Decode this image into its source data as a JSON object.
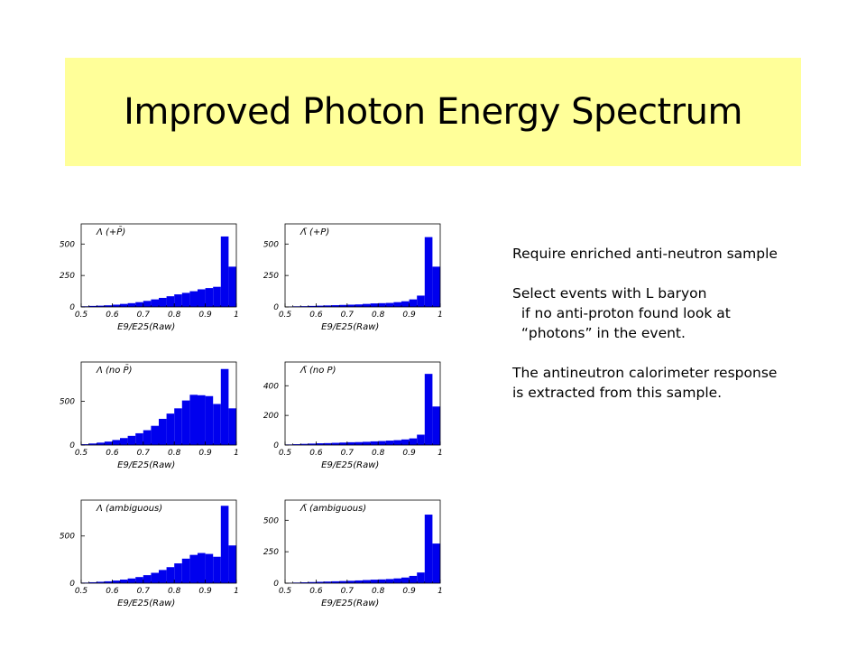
{
  "slide": {
    "title": "Improved Photon Energy Spectrum"
  },
  "notes": {
    "lines": [
      "Require enriched anti-neutron sample",
      "",
      "Select events with L baryon",
      "  if no anti-proton found look at",
      "  “photons” in the event.",
      "",
      "The antineutron calorimeter response",
      "is extracted from this sample."
    ]
  },
  "colors": {
    "title_bg": "#ffff99",
    "bar": "#0000ee"
  },
  "chart_data": [
    {
      "type": "bar",
      "legend": "Λ (+P̄)",
      "xlabel": "E9/E25(Raw)",
      "xlim": [
        0.5,
        1.0
      ],
      "ylim": [
        0,
        660
      ],
      "x_ticks": [
        "0.5",
        "0.6",
        "0.7",
        "0.8",
        "0.9",
        "1"
      ],
      "y_ticks": [
        {
          "value": 0,
          "label": "0"
        },
        {
          "value": 250,
          "label": "250"
        },
        {
          "value": 500,
          "label": "500"
        }
      ],
      "bin_width": 0.025,
      "bin_start": 0.5,
      "values": [
        5,
        8,
        10,
        13,
        18,
        24,
        30,
        38,
        48,
        60,
        72,
        85,
        100,
        112,
        125,
        140,
        150,
        160,
        560,
        320
      ]
    },
    {
      "type": "bar",
      "legend": "Λ̄ (+P)",
      "xlabel": "E9/E25(Raw)",
      "xlim": [
        0.5,
        1.0
      ],
      "ylim": [
        0,
        660
      ],
      "x_ticks": [
        "0.5",
        "0.6",
        "0.7",
        "0.8",
        "0.9",
        "1"
      ],
      "y_ticks": [
        {
          "value": 0,
          "label": "0"
        },
        {
          "value": 250,
          "label": "250"
        },
        {
          "value": 500,
          "label": "500"
        }
      ],
      "bin_width": 0.025,
      "bin_start": 0.5,
      "values": [
        3,
        5,
        6,
        8,
        10,
        12,
        14,
        16,
        18,
        20,
        24,
        28,
        30,
        32,
        38,
        45,
        60,
        90,
        555,
        320
      ]
    },
    {
      "type": "bar",
      "legend": "Λ (no P̄)",
      "xlabel": "E9/E25(Raw)",
      "xlim": [
        0.5,
        1.0
      ],
      "ylim": [
        0,
        950
      ],
      "x_ticks": [
        "0.5",
        "0.6",
        "0.7",
        "0.8",
        "0.9",
        "1"
      ],
      "y_ticks": [
        {
          "value": 0,
          "label": "0"
        },
        {
          "value": 500,
          "label": "500"
        }
      ],
      "bin_width": 0.025,
      "bin_start": 0.5,
      "values": [
        10,
        18,
        28,
        40,
        58,
        80,
        105,
        135,
        170,
        220,
        300,
        360,
        420,
        510,
        575,
        570,
        560,
        470,
        870,
        420
      ]
    },
    {
      "type": "bar",
      "legend": "Λ̄ (no P)",
      "xlabel": "E9/E25(Raw)",
      "xlim": [
        0.5,
        1.0
      ],
      "ylim": [
        0,
        560
      ],
      "x_ticks": [
        "0.5",
        "0.6",
        "0.7",
        "0.8",
        "0.9",
        "1"
      ],
      "y_ticks": [
        {
          "value": 0,
          "label": "0"
        },
        {
          "value": 200,
          "label": "200"
        },
        {
          "value": 400,
          "label": "400"
        }
      ],
      "bin_width": 0.025,
      "bin_start": 0.5,
      "values": [
        4,
        6,
        8,
        10,
        12,
        13,
        15,
        17,
        19,
        20,
        22,
        25,
        27,
        30,
        33,
        38,
        45,
        70,
        480,
        260
      ]
    },
    {
      "type": "bar",
      "legend": "Λ (ambiguous)",
      "xlabel": "E9/E25(Raw)",
      "xlim": [
        0.5,
        1.0
      ],
      "ylim": [
        0,
        880
      ],
      "x_ticks": [
        "0.5",
        "0.6",
        "0.7",
        "0.8",
        "0.9",
        "1"
      ],
      "y_ticks": [
        {
          "value": 0,
          "label": "0"
        },
        {
          "value": 500,
          "label": "500"
        }
      ],
      "bin_width": 0.025,
      "bin_start": 0.5,
      "values": [
        6,
        10,
        15,
        20,
        28,
        38,
        50,
        65,
        85,
        110,
        140,
        170,
        210,
        260,
        300,
        320,
        310,
        280,
        820,
        400
      ]
    },
    {
      "type": "bar",
      "legend": "Λ̄ (ambiguous)",
      "xlabel": "E9/E25(Raw)",
      "xlim": [
        0.5,
        1.0
      ],
      "ylim": [
        0,
        660
      ],
      "x_ticks": [
        "0.5",
        "0.6",
        "0.7",
        "0.8",
        "0.9",
        "1"
      ],
      "y_ticks": [
        {
          "value": 0,
          "label": "0"
        },
        {
          "value": 250,
          "label": "250"
        },
        {
          "value": 500,
          "label": "500"
        }
      ],
      "bin_width": 0.025,
      "bin_start": 0.5,
      "values": [
        3,
        5,
        7,
        9,
        11,
        13,
        15,
        17,
        19,
        22,
        25,
        28,
        30,
        33,
        38,
        45,
        58,
        85,
        545,
        315
      ]
    }
  ]
}
